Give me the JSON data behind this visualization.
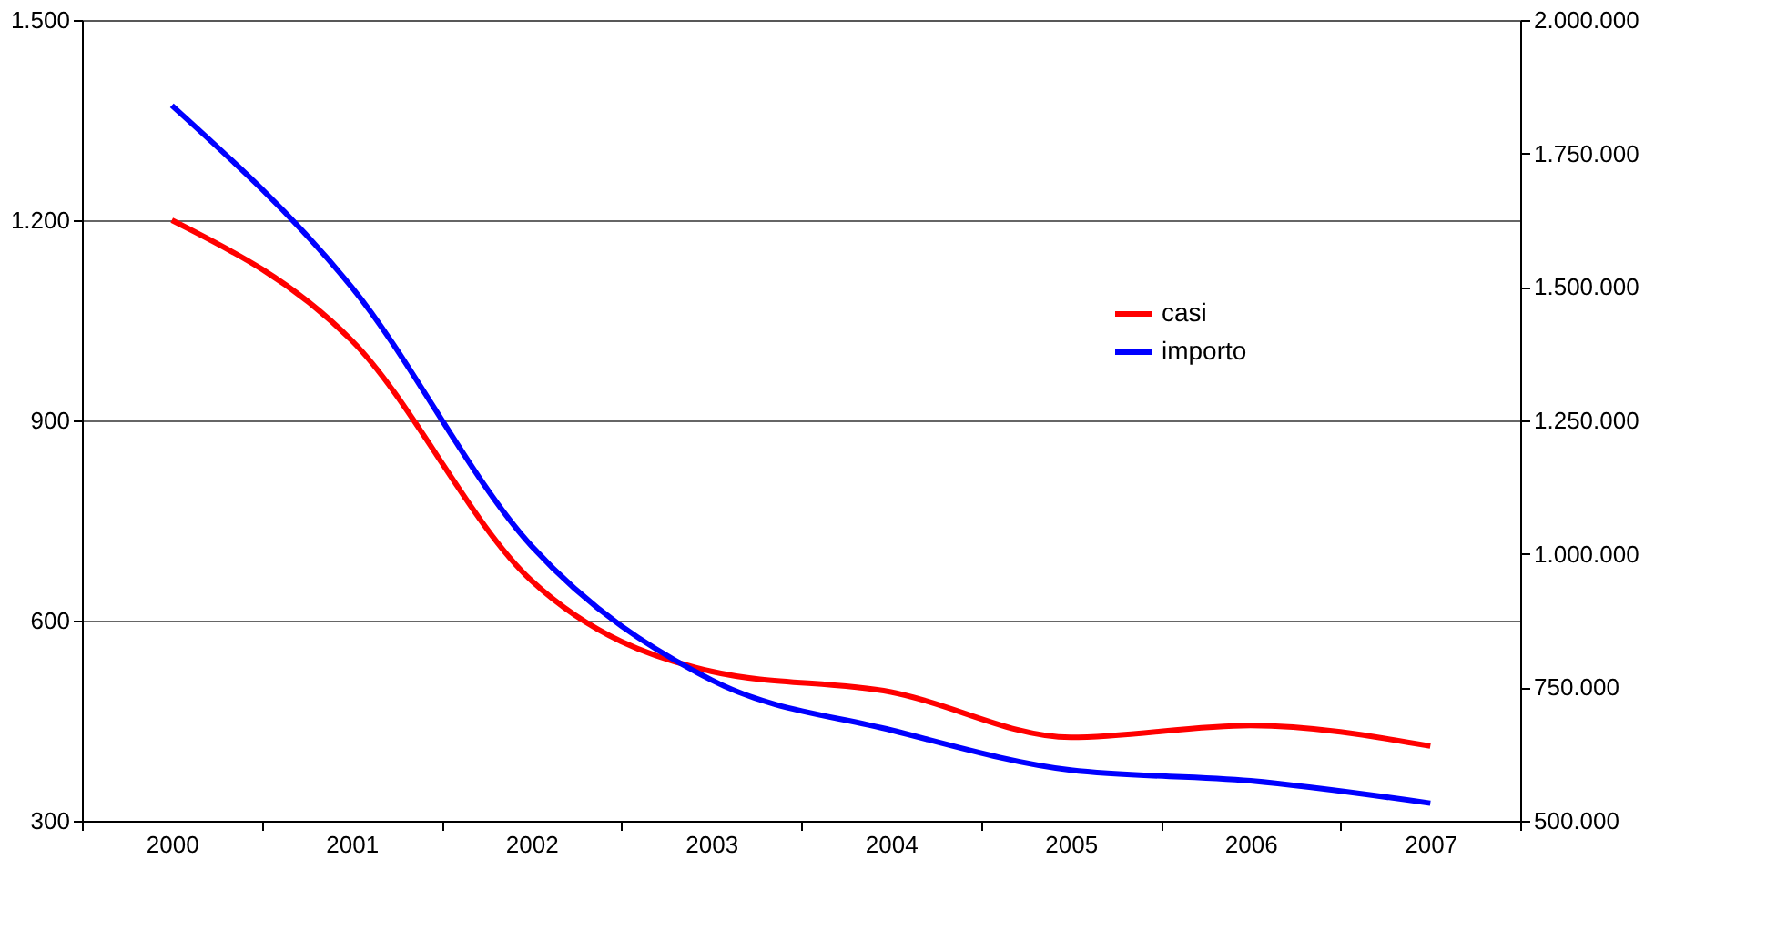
{
  "chart_data": {
    "type": "line",
    "categories": [
      "2000",
      "2001",
      "2002",
      "2003",
      "2004",
      "2005",
      "2006",
      "2007"
    ],
    "series": [
      {
        "name": "casi",
        "color": "#ff0000",
        "values": [
          1200,
          1020,
          660,
          524,
          493,
          425,
          443,
          412
        ]
      },
      {
        "name": "importo",
        "color": "#0000ff",
        "axis": "y2",
        "values": [
          1840000,
          1500000,
          1015000,
          764000,
          670000,
          595000,
          575000,
          533000
        ]
      }
    ],
    "ylim": [
      300,
      1500
    ],
    "yticks": [
      {
        "value": 300,
        "label": "300"
      },
      {
        "value": 600,
        "label": "600"
      },
      {
        "value": 900,
        "label": "900"
      },
      {
        "value": 1200,
        "label": "1.200"
      },
      {
        "value": 1500,
        "label": "1.500"
      }
    ],
    "y2lim": [
      500000,
      2000000
    ],
    "y2ticks": [
      {
        "value": 500000,
        "label": "500.000"
      },
      {
        "value": 750000,
        "label": "750.000"
      },
      {
        "value": 1000000,
        "label": "1.000.000"
      },
      {
        "value": 1250000,
        "label": "1.250.000"
      },
      {
        "value": 1500000,
        "label": "1.500.000"
      },
      {
        "value": 1750000,
        "label": "1.750.000"
      },
      {
        "value": 2000000,
        "label": "2.000.000"
      }
    ],
    "grid": "y",
    "legend": "top right",
    "marker": "none",
    "line_style": "solid"
  }
}
